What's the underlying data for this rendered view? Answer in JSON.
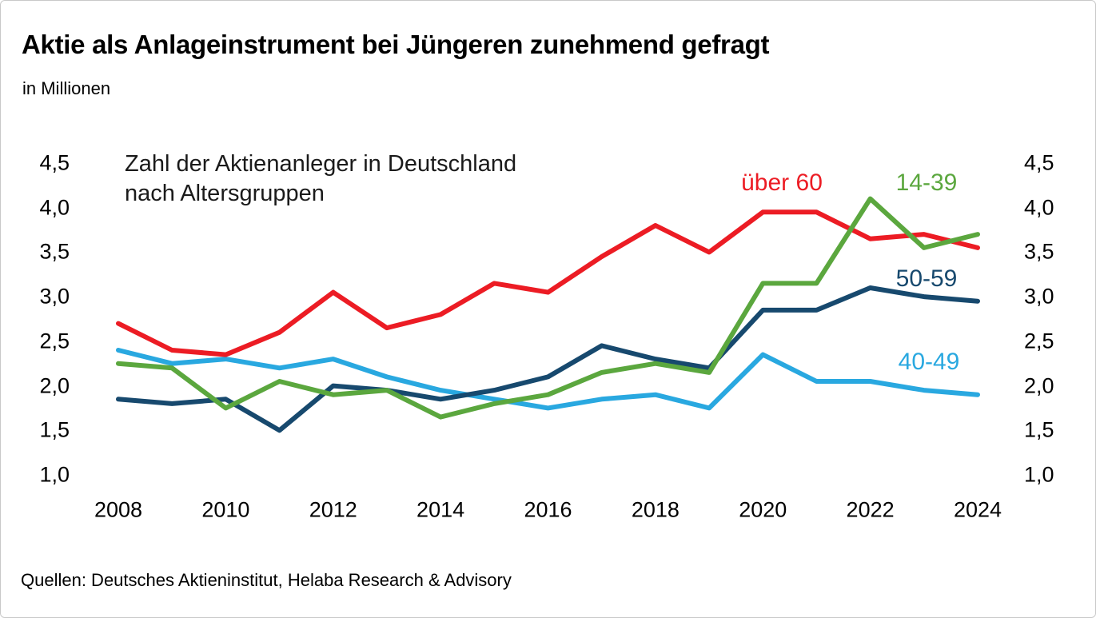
{
  "header": {
    "title": "Aktie als Anlageinstrument bei Jüngeren zunehmend gefragt",
    "subtitle": "in Millionen"
  },
  "chart_data": {
    "type": "line",
    "annotation": {
      "line1": "Zahl der Aktienanleger in Deutschland",
      "line2": "nach Altersgruppen"
    },
    "x": [
      2008,
      2009,
      2010,
      2011,
      2012,
      2013,
      2014,
      2015,
      2016,
      2017,
      2018,
      2019,
      2020,
      2021,
      2022,
      2023,
      2024
    ],
    "x_tick_labels": [
      "2008",
      "2010",
      "2012",
      "2014",
      "2016",
      "2018",
      "2020",
      "2022",
      "2024"
    ],
    "y_ticks": [
      4.5,
      4.0,
      3.5,
      3.0,
      2.5,
      2.0,
      1.5,
      1.0
    ],
    "y_tick_labels": [
      "4,5",
      "4,0",
      "3,5",
      "3,0",
      "2,5",
      "2,0",
      "1,5",
      "1,0"
    ],
    "ylim": [
      1.0,
      4.5
    ],
    "grid": false,
    "legend_position": "inline-labels-on-plot",
    "series": [
      {
        "name": "40-49",
        "color": "#29A8E0",
        "values": [
          2.4,
          2.25,
          2.3,
          2.2,
          2.3,
          2.1,
          1.95,
          1.85,
          1.75,
          1.85,
          1.9,
          1.75,
          2.35,
          2.05,
          2.05,
          1.95,
          1.9
        ]
      },
      {
        "name": "50-59",
        "color": "#17496E",
        "values": [
          1.85,
          1.8,
          1.85,
          1.5,
          2.0,
          1.95,
          1.85,
          1.95,
          2.1,
          2.45,
          2.3,
          2.2,
          2.85,
          2.85,
          3.1,
          3.0,
          2.95
        ]
      },
      {
        "name": "über 60",
        "color": "#EC1C24",
        "values": [
          2.7,
          2.4,
          2.35,
          2.6,
          3.05,
          2.65,
          2.8,
          3.15,
          3.05,
          3.45,
          3.8,
          3.5,
          3.95,
          3.95,
          3.65,
          3.7,
          3.55
        ]
      },
      {
        "name": "14-39",
        "color": "#5BA73E",
        "values": [
          2.25,
          2.2,
          1.75,
          2.05,
          1.9,
          1.95,
          1.65,
          1.8,
          1.9,
          2.15,
          2.25,
          2.15,
          3.15,
          3.15,
          4.1,
          3.55,
          3.7
        ]
      }
    ]
  },
  "footer": {
    "source": "Quellen: Deutsches Aktieninstitut, Helaba Research & Advisory"
  }
}
